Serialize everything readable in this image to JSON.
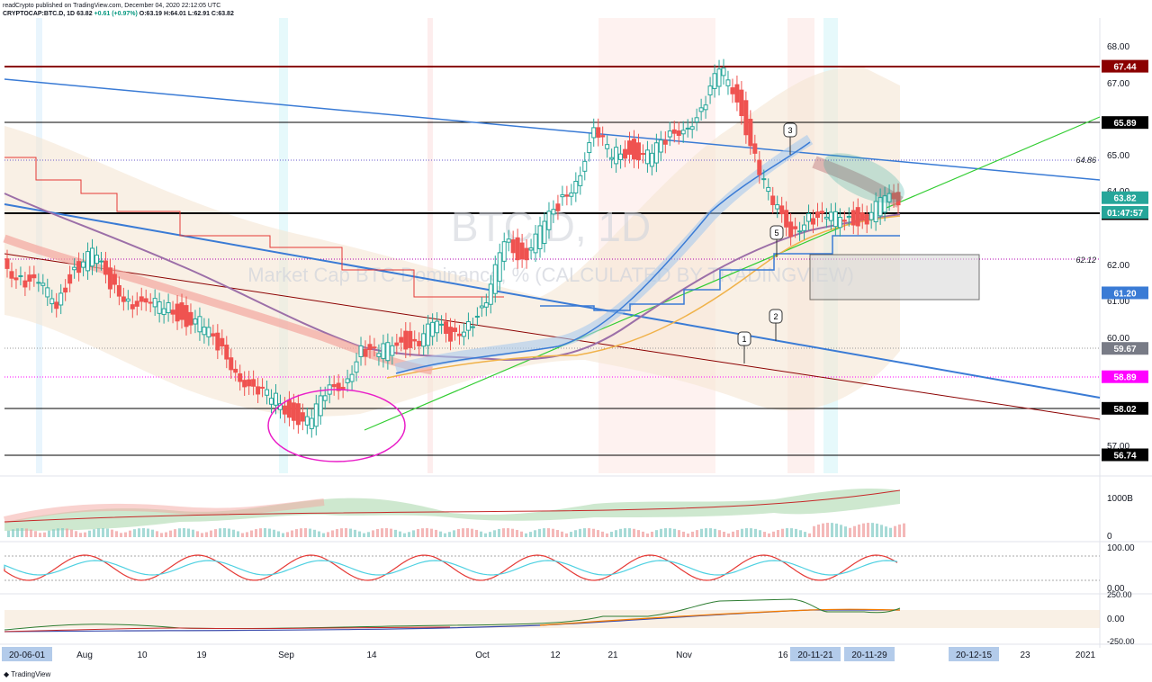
{
  "header": {
    "line1": "readCrypto published on TradingView.com, December 04, 2020 22:12:05 UTC",
    "line2_symbol": "CRYPTOCAP:BTC.D, 1D",
    "line2_price": "63.82",
    "line2_change": "+0.61 (+0.97%)",
    "line2_ohlc": "O:63.19 H:64.01 L:62.91 C:63.82"
  },
  "watermark": {
    "symbol": "BTC.D, 1D",
    "description": "Market Cap BTC Dominance, % (CALCULATED BY TRADINGVIEW)"
  },
  "footer": {
    "brand": "TradingView"
  },
  "colors": {
    "green": "#2e7d32",
    "red": "#c62828",
    "teal": "#26a69a",
    "blue_line": "#3a7bd5",
    "dark_red": "#8b0000",
    "magenta": "#ff00ff"
  },
  "chart_data": {
    "type": "line",
    "yaxis": {
      "range": [
        56.7,
        68.4
      ],
      "ticks": [
        "68.00",
        "67.00",
        "65.00",
        "64.00",
        "62.00",
        "61.00",
        "60.00",
        "57.00"
      ]
    },
    "price_tags": [
      {
        "value": 67.44,
        "label": "67.44",
        "color": "#8b0000"
      },
      {
        "value": 65.89,
        "label": "65.89",
        "color": "#000000"
      },
      {
        "value": 63.82,
        "label": "63.82",
        "color": "#26a69a"
      },
      {
        "value": 63.38,
        "label": "63.38",
        "color": "#000000"
      },
      {
        "value": 61.2,
        "label": "61.20",
        "color": "#3a7bd5"
      },
      {
        "value": 59.67,
        "label": "59.67",
        "color": "#787b86"
      },
      {
        "value": 58.89,
        "label": "58.89",
        "color": "#ff00ff"
      },
      {
        "value": 58.02,
        "label": "58.02",
        "color": "#000000"
      },
      {
        "value": 56.74,
        "label": "56.74",
        "color": "#000000"
      }
    ],
    "countdown": "01:47:57",
    "line_labels": [
      {
        "value": 64.86,
        "label": "64.86"
      },
      {
        "value": 62.12,
        "label": "62.12"
      }
    ],
    "horizontal_lines": [
      67.44,
      65.89,
      63.38,
      58.02,
      56.74
    ],
    "x_labels": [
      "20-06-01",
      "Aug",
      "10",
      "19",
      "Sep",
      "14",
      "Oct",
      "12",
      "21",
      "Nov",
      "16",
      "20-11-21",
      "20-11-29",
      "20-12-15",
      "23",
      "2021"
    ],
    "x_highlighted": [
      "20-06-01",
      "20-11-21",
      "20-11-29",
      "20-12-15"
    ],
    "wave_labels": [
      "1",
      "2",
      "3",
      "5"
    ],
    "price_series": [
      62.1,
      61.6,
      61.3,
      61.0,
      61.9,
      62.2,
      61.5,
      61.1,
      60.7,
      60.9,
      60.6,
      60.3,
      59.7,
      59.2,
      58.4,
      58.3,
      58.0,
      57.6,
      58.3,
      58.8,
      59.6,
      59.4,
      60.0,
      59.8,
      60.2,
      60.1,
      60.4,
      60.7,
      62.8,
      62.2,
      62.8,
      63.6,
      64.4,
      65.5,
      65.0,
      65.2,
      64.9,
      65.3,
      65.9,
      66.1,
      67.3,
      66.7,
      64.9,
      63.5,
      63.0,
      63.3,
      63.1,
      63.4,
      63.2,
      63.6,
      63.82
    ],
    "volume_axis": [
      "1000B",
      "0"
    ],
    "osc1_axis": [
      "100.00",
      "0.00"
    ],
    "osc2_axis": [
      "250.00",
      "0.00",
      "-250.00"
    ]
  }
}
